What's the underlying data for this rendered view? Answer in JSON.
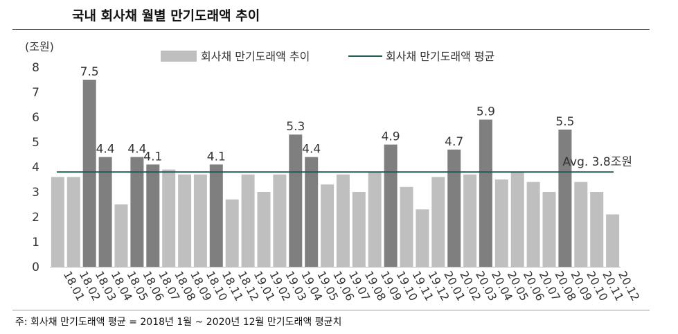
{
  "title": "국내 회사채 월별 만기도래액 추이",
  "footnote": "주: 회사채 만기도래액 평균 = 2018년 1월 ~ 2020년 12월 만기도래액 평균치",
  "colors": {
    "bar_light": "#bfbfbf",
    "bar_dark": "#7f7f7f",
    "avg_line": "#1f5c52"
  },
  "chart_data": {
    "type": "bar",
    "unit_label": "(조원)",
    "ylim": [
      0,
      8
    ],
    "yticks": [
      0,
      1,
      2,
      3,
      4,
      5,
      6,
      7,
      8
    ],
    "grid": false,
    "legend_position": "top",
    "categories": [
      "18.01",
      "18.02",
      "18.03",
      "18.04",
      "18.05",
      "18.06",
      "18.07",
      "18.08",
      "18.09",
      "18.10",
      "18.11",
      "18.12",
      "19.01",
      "19.02",
      "19.03",
      "19.04",
      "19.05",
      "19.06",
      "19.07",
      "19.08",
      "19.09",
      "19.10",
      "19.11",
      "19.12",
      "20.01",
      "20.02",
      "20.03",
      "20.04",
      "20.05",
      "20.06",
      "20.07",
      "20.08",
      "20.09",
      "20.10",
      "20.11",
      "20.12"
    ],
    "series": [
      {
        "name": "회사채 만기도래액 추이",
        "type": "bar",
        "values": [
          3.6,
          3.6,
          7.5,
          4.4,
          2.5,
          4.4,
          4.1,
          3.9,
          3.7,
          3.7,
          4.1,
          2.7,
          3.7,
          3.0,
          3.7,
          5.3,
          4.4,
          3.3,
          3.7,
          3.0,
          3.8,
          4.9,
          3.2,
          2.3,
          3.6,
          4.7,
          3.7,
          5.9,
          3.5,
          3.8,
          3.4,
          3.0,
          5.5,
          3.4,
          3.0,
          2.1
        ],
        "highlight": [
          false,
          false,
          true,
          true,
          false,
          true,
          true,
          false,
          false,
          false,
          true,
          false,
          false,
          false,
          false,
          true,
          true,
          false,
          false,
          false,
          false,
          true,
          false,
          false,
          false,
          true,
          false,
          true,
          false,
          false,
          false,
          false,
          true,
          false,
          false,
          false
        ],
        "data_labels": [
          "",
          "",
          "7.5",
          "4.4",
          "",
          "4.4",
          "4.1",
          "",
          "",
          "",
          "4.1",
          "",
          "",
          "",
          "",
          "5.3",
          "4.4",
          "",
          "",
          "",
          "",
          "4.9",
          "",
          "",
          "",
          "4.7",
          "",
          "5.9",
          "",
          "",
          "",
          "",
          "5.5",
          "",
          "",
          ""
        ]
      },
      {
        "name": "회사채 만기도래액 평균",
        "type": "line",
        "value": 3.8
      }
    ],
    "annotation": "Avg. 3.8조원"
  }
}
